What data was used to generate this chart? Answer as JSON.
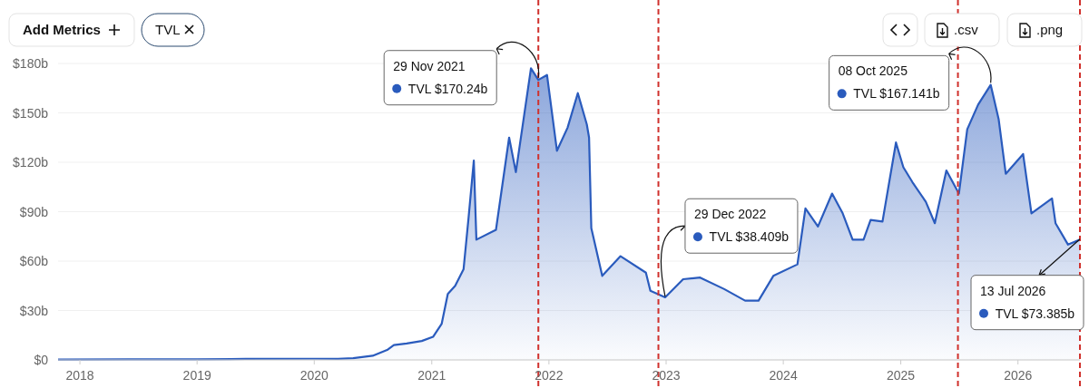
{
  "chart_data": {
    "type": "area",
    "xlim": [
      "2017-10-25",
      "2026-07-13"
    ],
    "ylim": [
      0,
      180
    ],
    "xticks": [
      "2018",
      "2019",
      "2020",
      "2021",
      "2022",
      "2023",
      "2024",
      "2025",
      "2026"
    ],
    "yticks": [
      {
        "value": 0,
        "label": "$0"
      },
      {
        "value": 30,
        "label": "$30b"
      },
      {
        "value": 60,
        "label": "$60b"
      },
      {
        "value": 90,
        "label": "$90b"
      },
      {
        "value": 120,
        "label": "$120b"
      },
      {
        "value": 150,
        "label": "$150b"
      },
      {
        "value": 180,
        "label": "$180b"
      }
    ],
    "grid": "y",
    "legend": false,
    "marker": "none",
    "line_style": "solid",
    "series": [
      {
        "color": "#2a5bbd",
        "x": [
          "2017-10-25",
          "2018-06-01",
          "2019-01-01",
          "2019-06-01",
          "2020-01-01",
          "2020-03-15",
          "2020-05-01",
          "2020-07-01",
          "2020-08-15",
          "2020-09-05",
          "2020-10-15",
          "2020-12-01",
          "2021-01-05",
          "2021-02-01",
          "2021-02-20",
          "2021-03-15",
          "2021-04-10",
          "2021-04-25",
          "2021-05-12",
          "2021-05-20",
          "2021-07-20",
          "2021-08-30",
          "2021-09-20",
          "2021-11-06",
          "2021-11-29",
          "2021-12-26",
          "2022-01-26",
          "2022-02-28",
          "2022-04-01",
          "2022-04-29",
          "2022-05-06",
          "2022-05-13",
          "2022-06-16",
          "2022-08-12",
          "2022-10-30",
          "2022-11-13",
          "2022-12-29",
          "2023-02-23",
          "2023-04-17",
          "2023-07-01",
          "2023-09-04",
          "2023-10-16",
          "2023-12-01",
          "2024-02-14",
          "2024-03-10",
          "2024-04-18",
          "2024-06-01",
          "2024-07-04",
          "2024-08-04",
          "2024-09-07",
          "2024-09-29",
          "2024-11-05",
          "2024-12-17",
          "2025-01-09",
          "2025-02-06",
          "2025-03-20",
          "2025-04-17",
          "2025-05-23",
          "2025-07-01",
          "2025-07-27",
          "2025-08-30",
          "2025-10-08",
          "2025-11-02",
          "2025-11-24",
          "2026-01-17",
          "2026-02-12",
          "2026-04-17",
          "2026-04-28",
          "2026-06-06",
          "2026-07-13"
        ],
        "values": [
          0.2,
          0.3,
          0.3,
          0.6,
          0.7,
          0.6,
          1,
          2.5,
          6,
          9,
          10,
          11.5,
          14,
          22,
          40,
          45,
          55,
          85,
          121,
          73,
          79,
          135,
          114,
          177,
          170,
          173,
          127,
          141,
          162,
          143,
          135,
          80,
          51,
          63,
          53,
          42,
          38,
          49,
          50,
          43,
          36,
          36,
          51,
          58,
          92,
          81,
          101,
          89,
          73,
          73,
          85,
          84,
          132,
          117,
          108,
          96,
          83,
          115,
          101,
          140,
          155,
          167,
          146,
          113,
          125,
          89,
          98,
          83,
          70,
          73
        ]
      }
    ],
    "ref_lines": [
      {
        "axis": "x",
        "value": "2021-11-29",
        "color": "#d0312d",
        "line_style": "dashed"
      },
      {
        "axis": "x",
        "value": "2022-12-08",
        "color": "#d0312d",
        "line_style": "dashed"
      },
      {
        "axis": "x",
        "value": "2025-06-28",
        "color": "#d0312d",
        "line_style": "dashed"
      },
      {
        "axis": "x",
        "value": "2026-07-13",
        "color": "#d0312d",
        "line_style": "dashed"
      }
    ],
    "annotations": [
      "Add Metrics",
      "TVL",
      ".csv",
      ".png",
      {
        "text": "29 Nov 2021\nTVL $170.24b",
        "x": "2021-11-29",
        "y": 170.24
      },
      {
        "text": "29 Dec 2022\nTVL $38.409b",
        "x": "2022-12-29",
        "y": 38.409
      },
      {
        "text": "08 Oct 2025\nTVL $167.141b",
        "x": "2025-10-08",
        "y": 167.141
      },
      {
        "text": "13 Jul 2026\nTVL $73.385b",
        "x": "2026-07-13",
        "y": 73.385
      }
    ]
  }
}
